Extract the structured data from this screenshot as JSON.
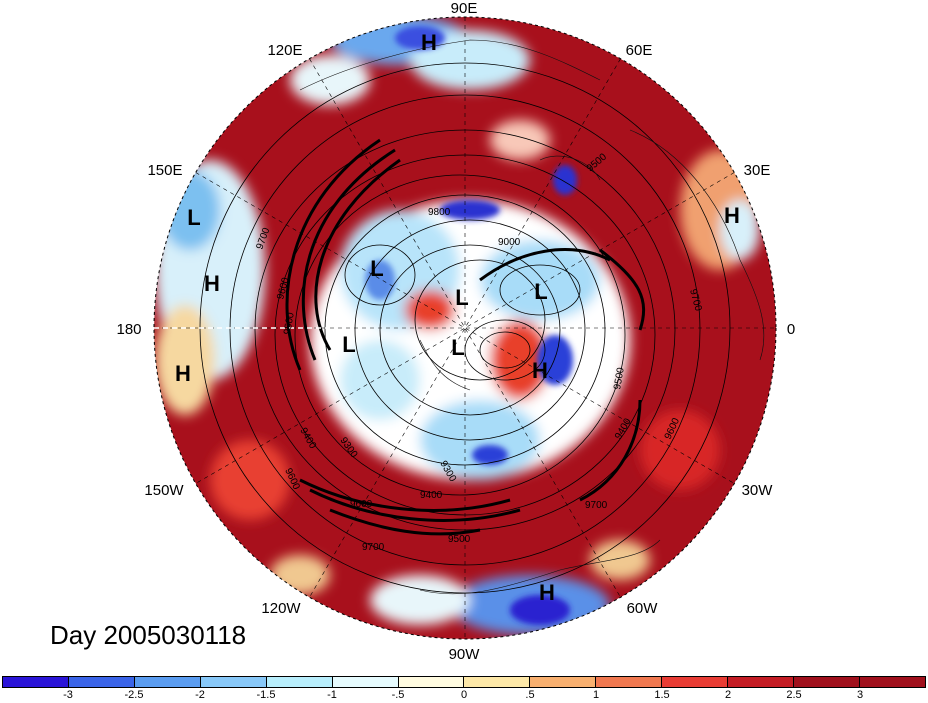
{
  "title_label": "Day 2005030118",
  "longitude_labels": {
    "e90": "90E",
    "e60": "60E",
    "e30": "30E",
    "zero": "0",
    "w30": "30W",
    "w60": "60W",
    "w90": "90W",
    "w120": "120W",
    "w150": "150W",
    "d180": "180",
    "e150": "150E",
    "e120": "120E"
  },
  "pressure_centers": {
    "h1": "H",
    "h2": "H",
    "h3": "H",
    "h4": "H",
    "h5": "H",
    "h6": "H",
    "l1": "L",
    "l2": "L",
    "l3": "L",
    "l4": "L",
    "l5": "L",
    "l6": "L"
  },
  "contour_labels": {
    "c1": "9800",
    "c2": "9700",
    "c3": "9600",
    "c4": "9500",
    "c5": "9000",
    "c6": "9500",
    "c7": "9700",
    "c8": "9400",
    "c9": "9300",
    "c10": "9400",
    "c11": "9600",
    "c12": "9300",
    "c13": "9700",
    "c14": "9500",
    "c15": "9600",
    "c16": "9700",
    "c17": "9600",
    "c18": "9500",
    "c19": "9400"
  },
  "colorbar": {
    "colors": [
      "#2a14d8",
      "#3a64e8",
      "#5a9cf0",
      "#88c8f8",
      "#b8eefc",
      "#e6fbfe",
      "#fffbe0",
      "#fde8a8",
      "#f8b070",
      "#f07850",
      "#e83c34",
      "#c41c24",
      "#a0101c"
    ],
    "tick_labels": [
      "-3",
      "-2.5",
      "-2",
      "-1.5",
      "-1",
      "-.5",
      "0",
      ".5",
      "1",
      "1.5",
      "2",
      "2.5",
      "3"
    ]
  }
}
